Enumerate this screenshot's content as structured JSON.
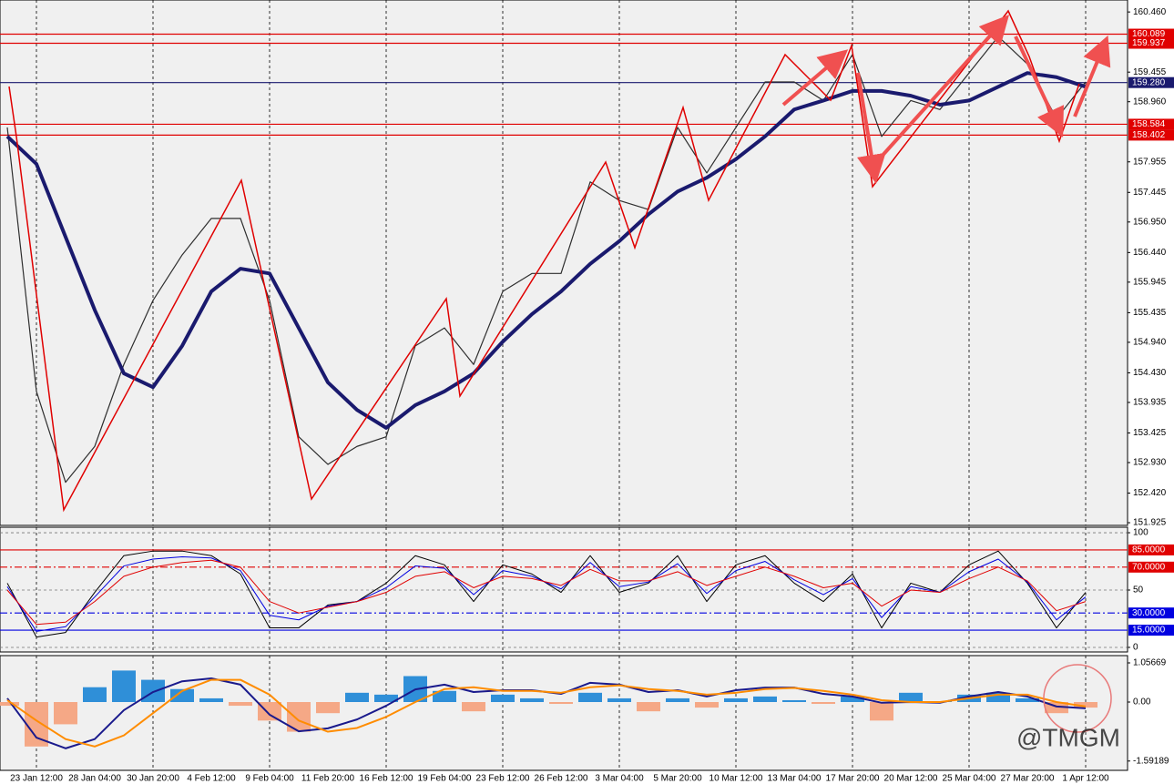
{
  "chart_data": [
    {
      "type": "line",
      "ylim": [
        151.88,
        160.66
      ],
      "yticks": [
        {
          "value": 160.46,
          "label": "160.460"
        },
        {
          "value": 159.455,
          "label": "159.455"
        },
        {
          "value": 158.96,
          "label": "158.960"
        },
        {
          "value": 157.955,
          "label": "157.955"
        },
        {
          "value": 157.445,
          "label": "157.445"
        },
        {
          "value": 156.95,
          "label": "156.950"
        },
        {
          "value": 156.44,
          "label": "156.440"
        },
        {
          "value": 155.945,
          "label": "155.945"
        },
        {
          "value": 155.435,
          "label": "155.435"
        },
        {
          "value": 154.94,
          "label": "154.940"
        },
        {
          "value": 154.43,
          "label": "154.430"
        },
        {
          "value": 153.935,
          "label": "153.935"
        },
        {
          "value": 153.425,
          "label": "153.425"
        },
        {
          "value": 152.93,
          "label": "152.930"
        },
        {
          "value": 152.42,
          "label": "152.420"
        },
        {
          "value": 151.925,
          "label": "151.925"
        }
      ],
      "levels": [
        {
          "value": 160.089,
          "color": "#e00000",
          "style": "solid"
        },
        {
          "value": 159.937,
          "color": "#e00000",
          "style": "solid"
        },
        {
          "value": 159.28,
          "label": "159.280",
          "color": "#1a1a6e",
          "style": "solid"
        },
        {
          "value": 158.584,
          "color": "#e00000",
          "style": "solid"
        },
        {
          "value": 158.402,
          "color": "#e00000",
          "style": "solid"
        }
      ],
      "series": [
        {
          "color": "#2e2e2e",
          "line_width": 1.2,
          "values": [
            158.53,
            154.12,
            152.6,
            153.2,
            154.57,
            155.64,
            156.4,
            157.01,
            157.01,
            155.64,
            153.36,
            152.9,
            153.2,
            153.36,
            154.88,
            155.18,
            154.57,
            155.79,
            156.09,
            156.09,
            157.62,
            157.31,
            157.16,
            158.53,
            157.77,
            158.53,
            159.29,
            159.29,
            158.98,
            159.75,
            158.38,
            158.98,
            158.83,
            159.44,
            160.05,
            159.59,
            158.68,
            159.29
          ]
        },
        {
          "color": "#1a1a6e",
          "line_width": 4,
          "values": [
            158.38,
            157.92,
            156.7,
            155.48,
            154.42,
            154.19,
            154.88,
            155.79,
            156.17,
            156.09,
            155.18,
            154.27,
            153.81,
            153.51,
            153.89,
            154.12,
            154.42,
            154.95,
            155.41,
            155.79,
            156.25,
            156.63,
            157.08,
            157.46,
            157.69,
            158.0,
            158.38,
            158.83,
            158.98,
            159.14,
            159.14,
            159.06,
            158.91,
            158.98,
            159.21,
            159.44,
            159.37,
            159.21
          ]
        }
      ]
    },
    {
      "type": "line",
      "ylim": [
        -4,
        104.8
      ],
      "yticks": [
        0,
        50,
        100
      ],
      "grid": true,
      "levels": [
        {
          "value": 85,
          "label": "85.0000",
          "color": "#e00000",
          "style": "solid"
        },
        {
          "value": 70,
          "label": "70.0000",
          "color": "#e00000",
          "style": "dashdot"
        },
        {
          "value": 30,
          "label": "30.0000",
          "color": "#0000e0",
          "style": "dashdot"
        },
        {
          "value": 15,
          "label": "15.0000",
          "color": "#0000e0",
          "style": "solid"
        }
      ],
      "series": [
        {
          "color": "#000000",
          "line_width": 1,
          "values": [
            56,
            9,
            13,
            48,
            80,
            84,
            84,
            80,
            64,
            17,
            17,
            37,
            40,
            56,
            80,
            72,
            40,
            72,
            64,
            48,
            80,
            48,
            56,
            80,
            40,
            72,
            80,
            56,
            40,
            64,
            17,
            56,
            48,
            72,
            84,
            56,
            17,
            48
          ]
        },
        {
          "color": "#0000e0",
          "line_width": 1,
          "values": [
            53,
            14,
            18,
            44,
            71,
            77,
            79,
            78,
            67,
            28,
            24,
            36,
            40,
            52,
            71,
            69,
            46,
            67,
            62,
            51,
            74,
            53,
            57,
            73,
            47,
            67,
            75,
            59,
            46,
            60,
            26,
            53,
            48,
            66,
            77,
            57,
            24,
            44
          ]
        },
        {
          "color": "#e00000",
          "line_width": 1,
          "values": [
            50,
            20,
            22,
            40,
            62,
            70,
            74,
            76,
            70,
            40,
            30,
            35,
            40,
            48,
            62,
            66,
            52,
            62,
            60,
            54,
            68,
            58,
            58,
            66,
            54,
            62,
            70,
            62,
            52,
            56,
            36,
            50,
            48,
            60,
            70,
            58,
            32,
            40
          ]
        }
      ]
    },
    {
      "type": "combo",
      "ylim": [
        -1.843,
        1.253
      ],
      "yticks": [
        1.05669,
        {
          "value": 0,
          "label": "0.00"
        },
        -1.59189
      ],
      "categories": [
        null,
        "23 Jan 12:00",
        null,
        "28 Jan 04:00",
        null,
        "30 Jan 20:00",
        null,
        "4 Feb 12:00",
        null,
        "9 Feb 04:00",
        null,
        "11 Feb 20:00",
        null,
        "16 Feb 12:00",
        null,
        "19 Feb 04:00",
        null,
        "23 Feb 12:00",
        null,
        "26 Feb 12:00",
        null,
        "3 Mar 04:00",
        null,
        "5 Mar 20:00",
        null,
        "10 Mar 12:00",
        null,
        "13 Mar 04:00",
        null,
        "17 Mar 20:00",
        null,
        "20 Mar 12:00",
        null,
        "25 Mar 04:00",
        null,
        "27 Mar 20:00",
        null,
        "1 Apr 12:00"
      ],
      "series": [
        {
          "type": "bar",
          "color": "#2f8fd8",
          "negative_color": "#f5a886",
          "values": [
            -0.1,
            -1.2,
            -0.6,
            0.4,
            0.85,
            0.6,
            0.35,
            0.1,
            -0.1,
            -0.5,
            -0.8,
            -0.3,
            0.25,
            0.2,
            0.7,
            0.3,
            -0.25,
            0.2,
            0.1,
            -0.05,
            0.25,
            0.1,
            -0.25,
            0.1,
            -0.15,
            0.1,
            0.15,
            0.05,
            -0.05,
            0.15,
            -0.5,
            0.25,
            0.02,
            0.2,
            0.25,
            0.1,
            -0.3,
            -0.15
          ]
        },
        {
          "type": "line",
          "color": "#1a1a8c",
          "line_width": 2,
          "values": [
            0.1,
            -0.96,
            -1.25,
            -1.0,
            -0.22,
            0.27,
            0.56,
            0.64,
            0.47,
            -0.34,
            -0.79,
            -0.71,
            -0.47,
            -0.1,
            0.34,
            0.47,
            0.27,
            0.32,
            0.32,
            0.22,
            0.52,
            0.47,
            0.27,
            0.32,
            0.15,
            0.32,
            0.39,
            0.39,
            0.22,
            0.15,
            -0.02,
            0,
            -0.02,
            0.15,
            0.27,
            0.15,
            -0.12,
            -0.17
          ]
        },
        {
          "type": "line",
          "color": "#ff8c00",
          "line_width": 2,
          "values": [
            0.05,
            -0.5,
            -1.0,
            -1.2,
            -0.9,
            -0.3,
            0.3,
            0.6,
            0.6,
            0.2,
            -0.5,
            -0.8,
            -0.7,
            -0.4,
            0.0,
            0.35,
            0.4,
            0.3,
            0.3,
            0.25,
            0.4,
            0.45,
            0.35,
            0.3,
            0.2,
            0.25,
            0.35,
            0.38,
            0.3,
            0.2,
            0.05,
            0.0,
            0.0,
            0.1,
            0.2,
            0.2,
            0.0,
            -0.12
          ]
        }
      ]
    }
  ],
  "watermark": "@TMGM"
}
